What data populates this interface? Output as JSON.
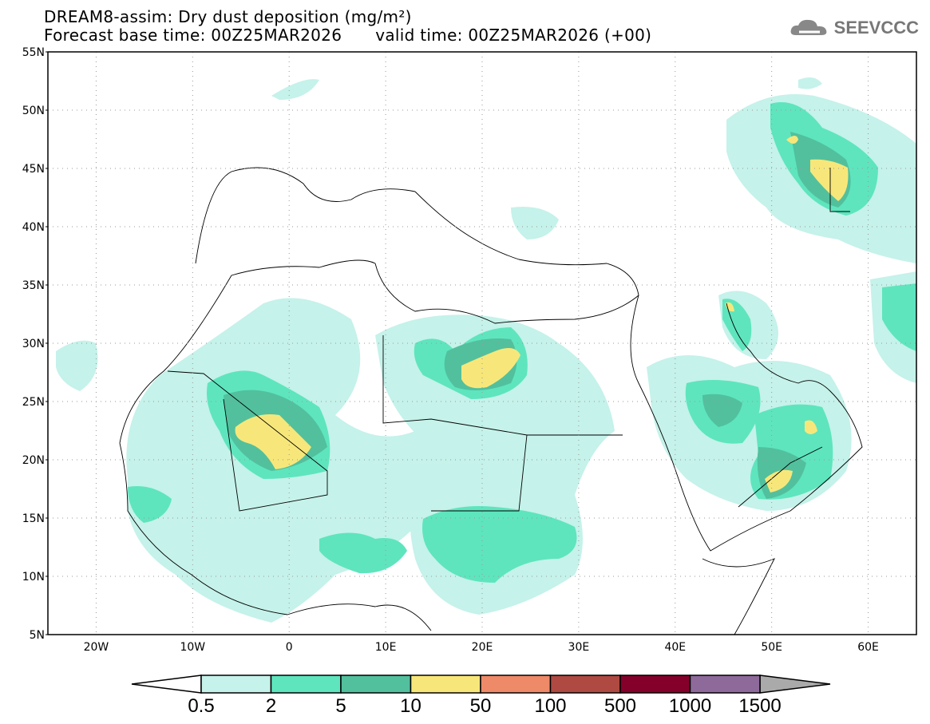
{
  "header": {
    "title": "DREAM8-assim: Dry dust deposition (mg/m²)",
    "base_time": "Forecast base time: 00Z25MAR2026",
    "valid_time": "valid time: 00Z25MAR2026 (+00)",
    "logo_text": "SEEVCCC"
  },
  "map": {
    "lon_range": [
      -25,
      65
    ],
    "lat_range": [
      5,
      55
    ],
    "lat_labels": [
      "55N",
      "50N",
      "45N",
      "40N",
      "35N",
      "30N",
      "25N",
      "20N",
      "15N",
      "10N",
      "5N"
    ],
    "lon_labels": [
      "20W",
      "10W",
      "0",
      "10E",
      "20E",
      "30E",
      "40E",
      "50E",
      "60E"
    ]
  },
  "colorbar": {
    "levels": [
      "0.5",
      "2",
      "5",
      "10",
      "50",
      "100",
      "500",
      "1000",
      "1500"
    ],
    "colors": [
      "#c5f2ea",
      "#5ee5be",
      "#52c09d",
      "#f7e77a",
      "#ee8a68",
      "#ae4a42",
      "#84002a",
      "#8e6a9a"
    ],
    "under_color": "#ffffff",
    "over_color": "#aaaaaa"
  }
}
